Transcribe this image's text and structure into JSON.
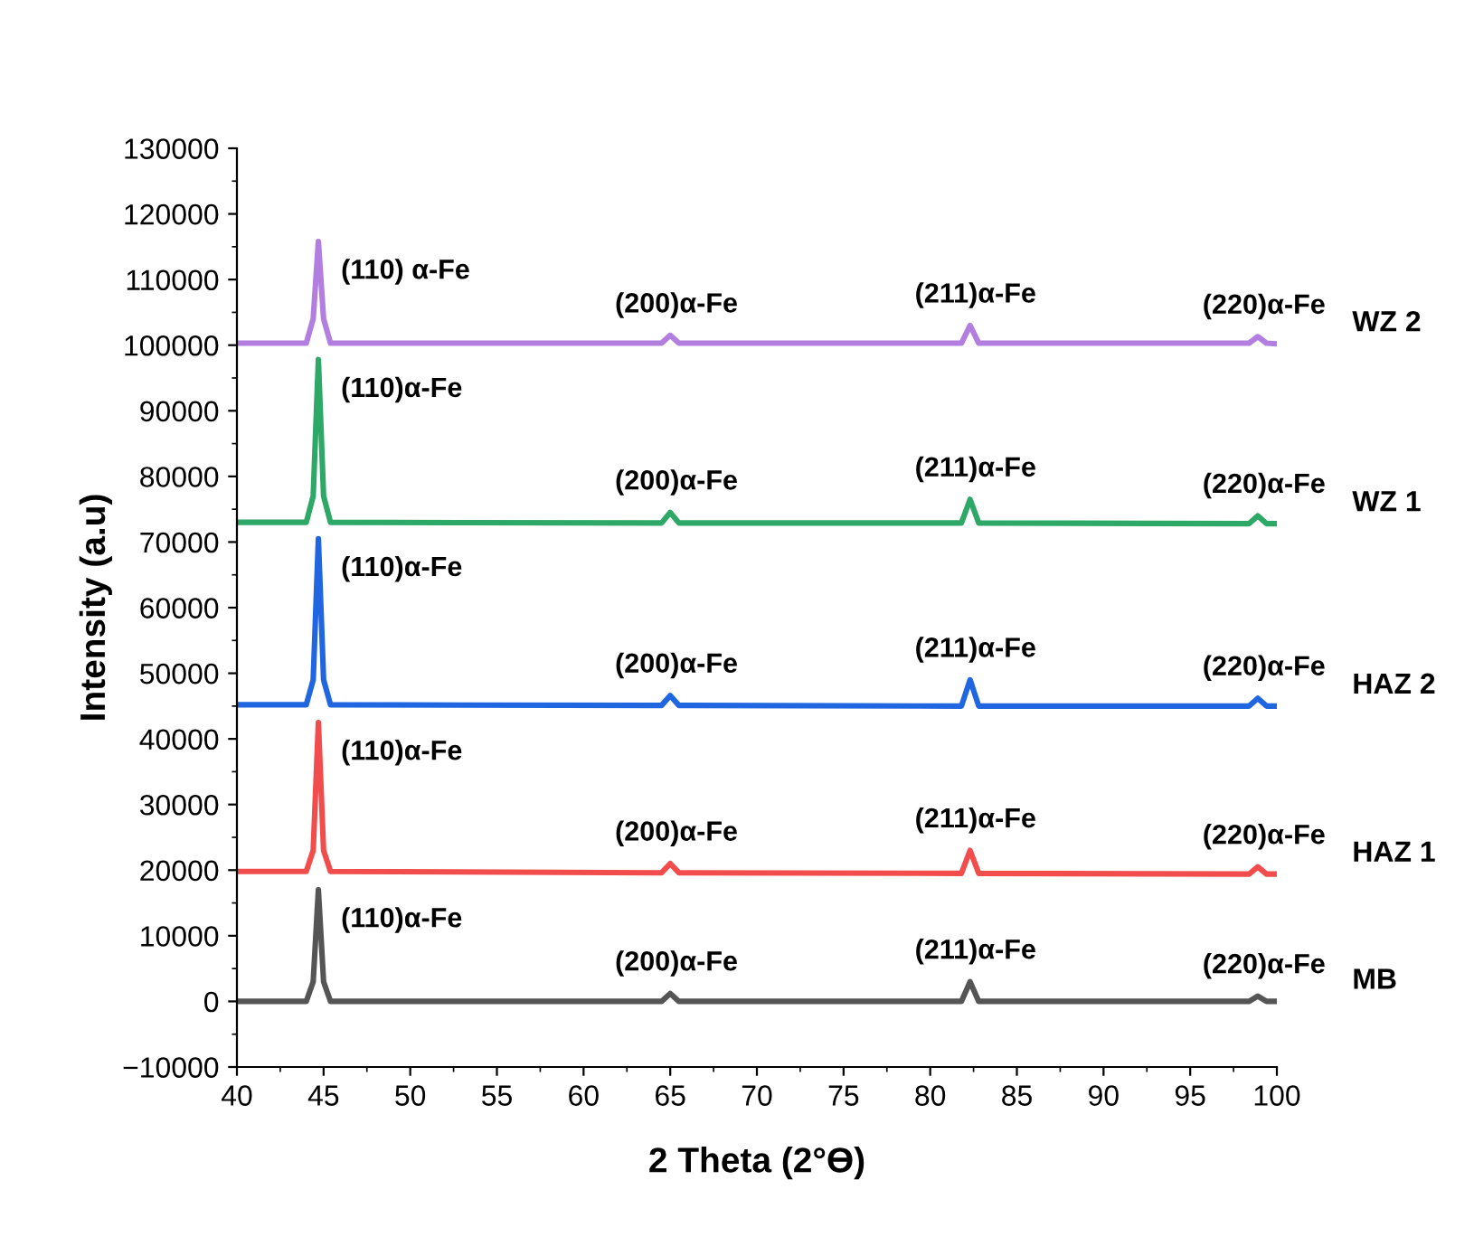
{
  "chart_data": {
    "type": "line",
    "xlabel": "2 Theta (2°Ө)",
    "ylabel": "Intensity (a.u)",
    "xlim": [
      40,
      100
    ],
    "xticks": [
      40,
      45,
      50,
      55,
      60,
      65,
      70,
      75,
      80,
      85,
      90,
      95,
      100
    ],
    "ylim": [
      -10000,
      130000
    ],
    "yticks": [
      -10000,
      0,
      10000,
      20000,
      30000,
      40000,
      50000,
      60000,
      70000,
      80000,
      90000,
      100000,
      110000,
      120000,
      130000
    ],
    "grid": false,
    "legend": false,
    "marker": "none",
    "line_style": "solid",
    "x": [
      40,
      44.0,
      44.4,
      44.7,
      45.0,
      45.4,
      64.5,
      65.0,
      65.5,
      81.8,
      82.3,
      82.8,
      98.4,
      98.9,
      99.4,
      100
    ],
    "series": [
      {
        "name": "MB",
        "color": "#555555",
        "values": [
          0,
          0,
          3000,
          17000,
          3000,
          0,
          0,
          1200,
          0,
          0,
          3000,
          0,
          0,
          800,
          0,
          0
        ]
      },
      {
        "name": "HAZ 1",
        "color": "#f24d4d",
        "values": [
          19800,
          19800,
          23000,
          42500,
          23000,
          19800,
          19600,
          21000,
          19600,
          19500,
          23000,
          19500,
          19400,
          20500,
          19400,
          19400
        ]
      },
      {
        "name": "HAZ 2",
        "color": "#1f66e0",
        "values": [
          45200,
          45200,
          49000,
          70500,
          49000,
          45200,
          45100,
          46600,
          45100,
          45000,
          49000,
          45000,
          45000,
          46200,
          45000,
          45000
        ]
      },
      {
        "name": "WZ 1",
        "color": "#2ea866",
        "values": [
          73000,
          73000,
          77000,
          97800,
          77000,
          73000,
          72900,
          74500,
          72900,
          72900,
          76500,
          72900,
          72800,
          74000,
          72800,
          72800
        ]
      },
      {
        "name": "WZ 2",
        "color": "#b27fe0",
        "values": [
          100300,
          100300,
          104000,
          115800,
          104000,
          100300,
          100300,
          101500,
          100300,
          100300,
          103000,
          100300,
          100300,
          101300,
          100300,
          100200
        ]
      }
    ],
    "annotations": [
      {
        "text": "(110)α-Fe",
        "x": 44.7,
        "y": 17000
      },
      {
        "text": "(200)α-Fe",
        "x": 65.0,
        "y": 1200
      },
      {
        "text": "(211)α-Fe",
        "x": 82.3,
        "y": 3000
      },
      {
        "text": "(220)α-Fe",
        "x": 98.9,
        "y": 800
      },
      {
        "text": "(110)α-Fe",
        "x": 44.7,
        "y": 42500
      },
      {
        "text": "(200)α-Fe",
        "x": 65.0,
        "y": 21000
      },
      {
        "text": "(211)α-Fe",
        "x": 82.3,
        "y": 23000
      },
      {
        "text": "(220)α-Fe",
        "x": 98.9,
        "y": 20500
      },
      {
        "text": "(110)α-Fe",
        "x": 44.7,
        "y": 70500
      },
      {
        "text": "(200)α-Fe",
        "x": 65.0,
        "y": 46600
      },
      {
        "text": "(211)α-Fe",
        "x": 82.3,
        "y": 49000
      },
      {
        "text": "(220)α-Fe",
        "x": 98.9,
        "y": 46200
      },
      {
        "text": "(110)α-Fe",
        "x": 44.7,
        "y": 97800
      },
      {
        "text": "(200)α-Fe",
        "x": 65.0,
        "y": 74500
      },
      {
        "text": "(211)α-Fe",
        "x": 82.3,
        "y": 76500
      },
      {
        "text": "(220)α-Fe",
        "x": 98.9,
        "y": 74000
      },
      {
        "text": "(110) α-Fe",
        "x": 44.7,
        "y": 115800
      },
      {
        "text": "(200)α-Fe",
        "x": 65.0,
        "y": 101500
      },
      {
        "text": "(211)α-Fe",
        "x": 82.3,
        "y": 103000
      },
      {
        "text": "(220)α-Fe",
        "x": 98.9,
        "y": 101300
      }
    ]
  }
}
